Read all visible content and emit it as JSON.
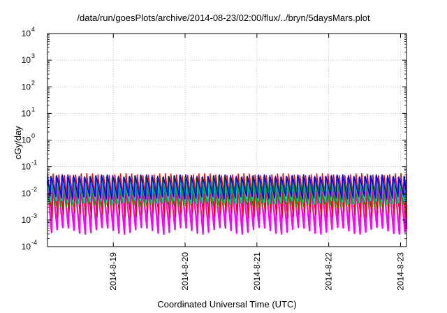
{
  "chart_data": {
    "type": "line",
    "title": "/data/run/goesPlots/archive/2014-08-23/02:00/flux/../bryn/5daysMars.plot",
    "xlabel": "Coordinated Universal Time (UTC)",
    "ylabel": "cGy/day",
    "y_scale": "log",
    "ylim": [
      0.0001,
      10000
    ],
    "y_ticks": [
      {
        "base": "10",
        "exp": "-4"
      },
      {
        "base": "10",
        "exp": "-3"
      },
      {
        "base": "10",
        "exp": "-2"
      },
      {
        "base": "10",
        "exp": "-1"
      },
      {
        "base": "10",
        "exp": "0"
      },
      {
        "base": "10",
        "exp": "1"
      },
      {
        "base": "10",
        "exp": "2"
      },
      {
        "base": "10",
        "exp": "3"
      },
      {
        "base": "10",
        "exp": "4"
      }
    ],
    "xlim": [
      "2014-08-18 02:00",
      "2014-08-23 02:00"
    ],
    "x_ticks": [
      "2014-8-19",
      "2014-8-20",
      "2014-8-21",
      "2014-8-22",
      "2014-8-23"
    ],
    "grid": true,
    "legend": "none",
    "series_note_values": "Each series is a periodic sawtooth of ~64 cycles over 5 days; values listed are approximate peak and trough levels (cGy/day).",
    "series": [
      {
        "color": "#ff0000",
        "peak": 0.055,
        "trough": 0.0012
      },
      {
        "color": "#ff00ff",
        "peak": 0.03,
        "trough": 0.0003
      },
      {
        "color": "#00cccc",
        "peak": 0.035,
        "trough": 0.004
      },
      {
        "color": "#0000ff",
        "peak": 0.05,
        "trough": 0.006
      },
      {
        "color": "#00aa00",
        "peak": 0.045,
        "trough": 0.003
      }
    ]
  }
}
